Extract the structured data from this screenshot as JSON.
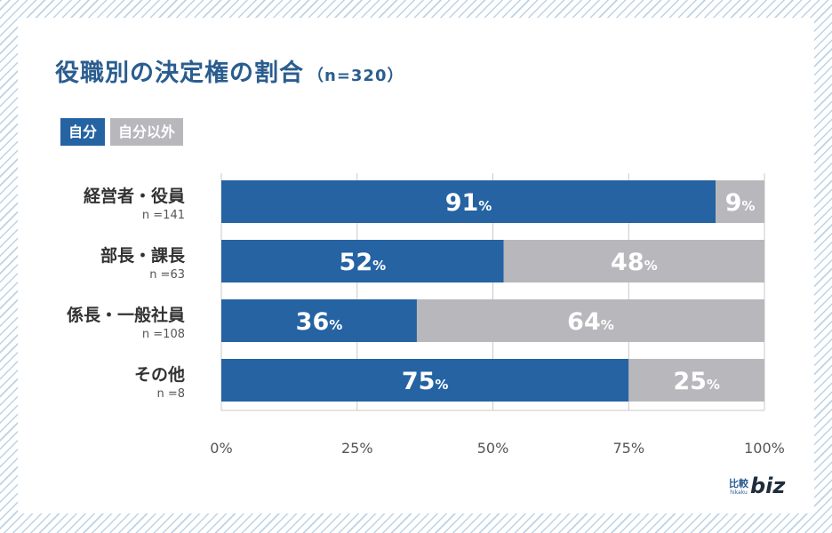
{
  "title": "役職別の決定権の割合",
  "title_n": "（n=320）",
  "legend": [
    {
      "label": "自分",
      "color": "#2563a2"
    },
    {
      "label": "自分以外",
      "color": "#b8b7bc"
    }
  ],
  "logo": {
    "kanji": "比較",
    "romaji": "hikaku",
    "biz": "biz"
  },
  "chart_data": {
    "type": "bar",
    "orientation": "horizontal",
    "stacked": true,
    "title": "役職別の決定権の割合",
    "categories": [
      "経営者・役員",
      "部長・課長",
      "係長・一般社員",
      "その他"
    ],
    "sample_sizes": [
      "n =141",
      "n =63",
      "n =108",
      "n =8"
    ],
    "series": [
      {
        "name": "自分",
        "values": [
          91,
          52,
          36,
          75
        ],
        "color": "#2563a2"
      },
      {
        "name": "自分以外",
        "values": [
          9,
          48,
          64,
          25
        ],
        "color": "#b8b7bc"
      }
    ],
    "value_suffix": "%",
    "xlim": [
      0,
      100
    ],
    "xticks": [
      0,
      25,
      50,
      75,
      100
    ],
    "xtick_labels": [
      "0%",
      "25%",
      "50%",
      "75%",
      "100%"
    ],
    "grid": true
  }
}
